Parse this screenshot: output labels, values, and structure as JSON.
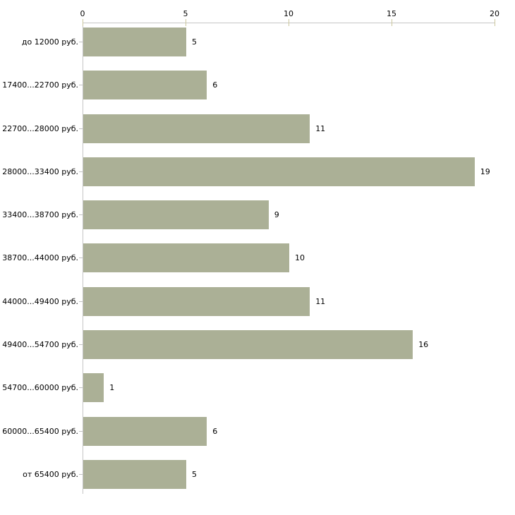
{
  "chart_data": {
    "type": "bar",
    "orientation": "horizontal",
    "title": "",
    "xlabel": "",
    "ylabel": "",
    "categories": [
      "до 12000 руб.",
      "17400...22700 руб.",
      "22700...28000 руб.",
      "28000...33400 руб.",
      "33400...38700 руб.",
      "38700...44000 руб.",
      "44000...49400 руб.",
      "49400...54700 руб.",
      "54700...60000 руб.",
      "60000...65400 руб.",
      "от 65400 руб."
    ],
    "values": [
      5,
      6,
      11,
      19,
      9,
      10,
      11,
      16,
      1,
      6,
      5
    ],
    "x_ticks": [
      0,
      5,
      10,
      15,
      20
    ],
    "xlim": [
      0,
      20
    ],
    "grid": false,
    "legend": "none",
    "colors": {
      "bar": "#abb096",
      "axis": "#c6c6c6",
      "axis_tick": "#ccc89e",
      "text": "#000000",
      "background": "#ffffff"
    }
  }
}
